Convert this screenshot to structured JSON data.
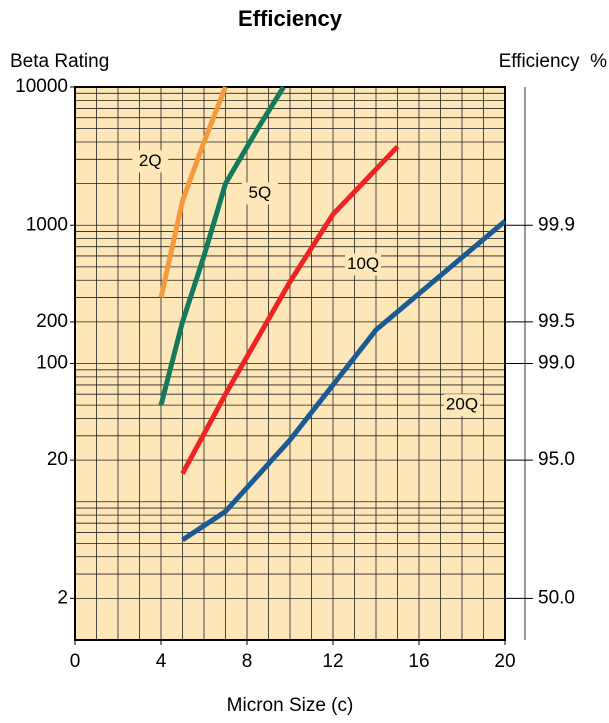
{
  "chart_data": {
    "type": "line",
    "title": "Efficiency",
    "ylabel": "Beta Rating",
    "y2label": "Efficiency  %",
    "xlabel": "Micron Size (c)",
    "xlim": [
      0,
      20
    ],
    "xticks": [
      0,
      4,
      8,
      12,
      16,
      20
    ],
    "xgrid": [
      0,
      1,
      2,
      3,
      4,
      5,
      6,
      7,
      8,
      9,
      10,
      11,
      12,
      13,
      14,
      15,
      16,
      17,
      18,
      19,
      20
    ],
    "ylim": [
      1,
      10000
    ],
    "yscale": "log",
    "yticks": [
      10000,
      1000,
      200,
      100,
      20,
      2
    ],
    "ytick_colors": [
      "#000000",
      "#e8202a",
      "#e8202a",
      "#000000",
      "#000000",
      "#000000"
    ],
    "ygrid": [
      2,
      3,
      4,
      5,
      6,
      7,
      8,
      9,
      10,
      20,
      30,
      40,
      50,
      60,
      70,
      80,
      90,
      100,
      200,
      300,
      400,
      500,
      600,
      700,
      800,
      900,
      1000,
      2000,
      3000,
      4000,
      5000,
      6000,
      7000,
      8000,
      9000
    ],
    "y2lim": [
      0,
      99.99
    ],
    "y2scale": "beta",
    "y2ticks": [
      99.9,
      99.5,
      {
        "value": 99,
        "label": "99.0"
      },
      {
        "value": 95,
        "label": "95.0"
      },
      {
        "value": 50,
        "label": "50.0"
      }
    ],
    "y2tick_colors": [
      "#e8202a",
      "#e8202a",
      "#000000",
      "#000000",
      "#000000"
    ],
    "background": "#fde6b8",
    "grid": true,
    "series": [
      {
        "name": "2Q",
        "color": "#f39a3c",
        "x": [
          4,
          5,
          6,
          7
        ],
        "values": [
          300,
          1500,
          4000,
          10000
        ]
      },
      {
        "name": "5Q",
        "color": "#137a5c",
        "x": [
          4,
          5,
          6,
          7,
          8.5,
          9.7
        ],
        "values": [
          50,
          200,
          600,
          2000,
          5000,
          10000
        ]
      },
      {
        "name": "10Q",
        "color": "#ee2424",
        "x": [
          5,
          7,
          10,
          12,
          15
        ],
        "values": [
          16,
          60,
          390,
          1200,
          3700
        ]
      },
      {
        "name": "20Q",
        "color": "#1a5b94",
        "x": [
          5,
          7,
          10,
          14,
          20
        ],
        "values": [
          5.3,
          8.5,
          28,
          175,
          1070
        ]
      }
    ]
  }
}
